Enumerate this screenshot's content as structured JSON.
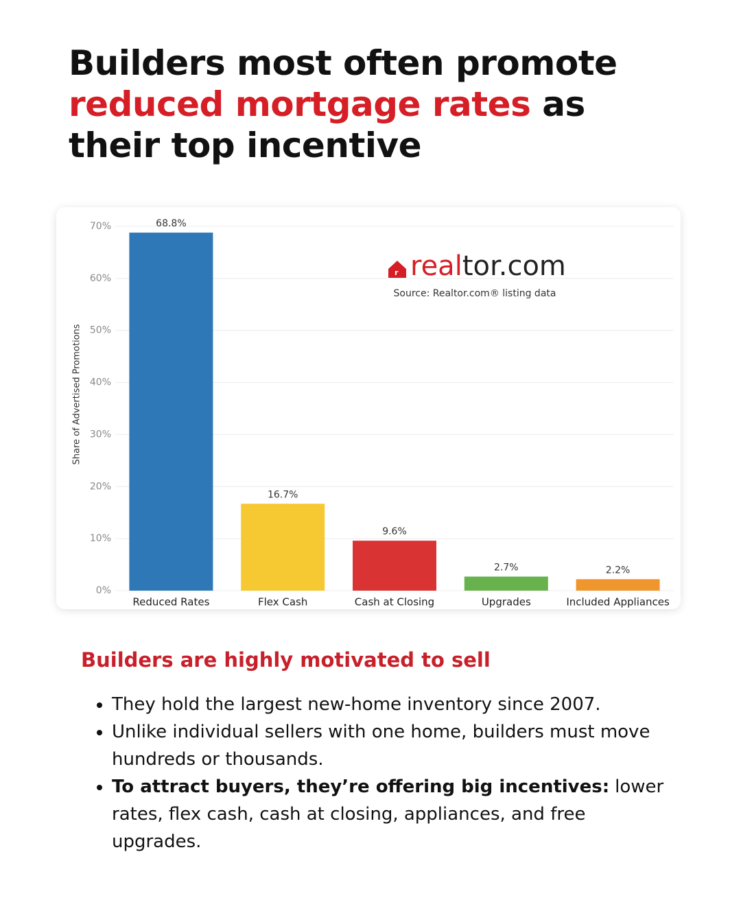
{
  "headline": [
    "Builders most often promote",
    "reduced mortgage rates",
    "as",
    "their top incentive"
  ],
  "chart_data": {
    "type": "bar",
    "y_label": "Share of Advertised Promotions",
    "categories": [
      "Reduced Rates",
      "Flex Cash",
      "Cash at Closing",
      "Upgrades",
      "Included Appliances"
    ],
    "values": [
      68.8,
      16.7,
      9.6,
      2.7,
      2.2
    ],
    "value_labels": [
      "68.8%",
      "16.7%",
      "9.6%",
      "2.7%",
      "2.2%"
    ],
    "colors": [
      "#2f78b7",
      "#f6c831",
      "#d93333",
      "#67b24c",
      "#f0962e"
    ],
    "ylim": [
      0,
      70
    ],
    "yticks": [
      {
        "value": 0,
        "label": "0%"
      },
      {
        "value": 10,
        "label": "10%"
      },
      {
        "value": 20,
        "label": "20%"
      },
      {
        "value": 30,
        "label": "30%"
      },
      {
        "value": 40,
        "label": "40%"
      },
      {
        "value": 50,
        "label": "50%"
      },
      {
        "value": 60,
        "label": "60%"
      },
      {
        "value": 70,
        "label": "70%"
      }
    ],
    "grid": true,
    "logo": [
      "real",
      "tor.com"
    ],
    "source": "Source: Realtor.com® listing data"
  },
  "section": {
    "heading": "Builders are highly motivated to sell",
    "bullets": [
      {
        "text": "They hold the largest new-home inventory since 2007."
      },
      {
        "text": "Unlike individual sellers with one home, builders must move hundreds or thousands."
      },
      {
        "bold": "To attract buyers, they’re offering big incentives:",
        "text": "lower rates, flex cash, cash at closing, appliances, and free upgrades."
      }
    ]
  }
}
